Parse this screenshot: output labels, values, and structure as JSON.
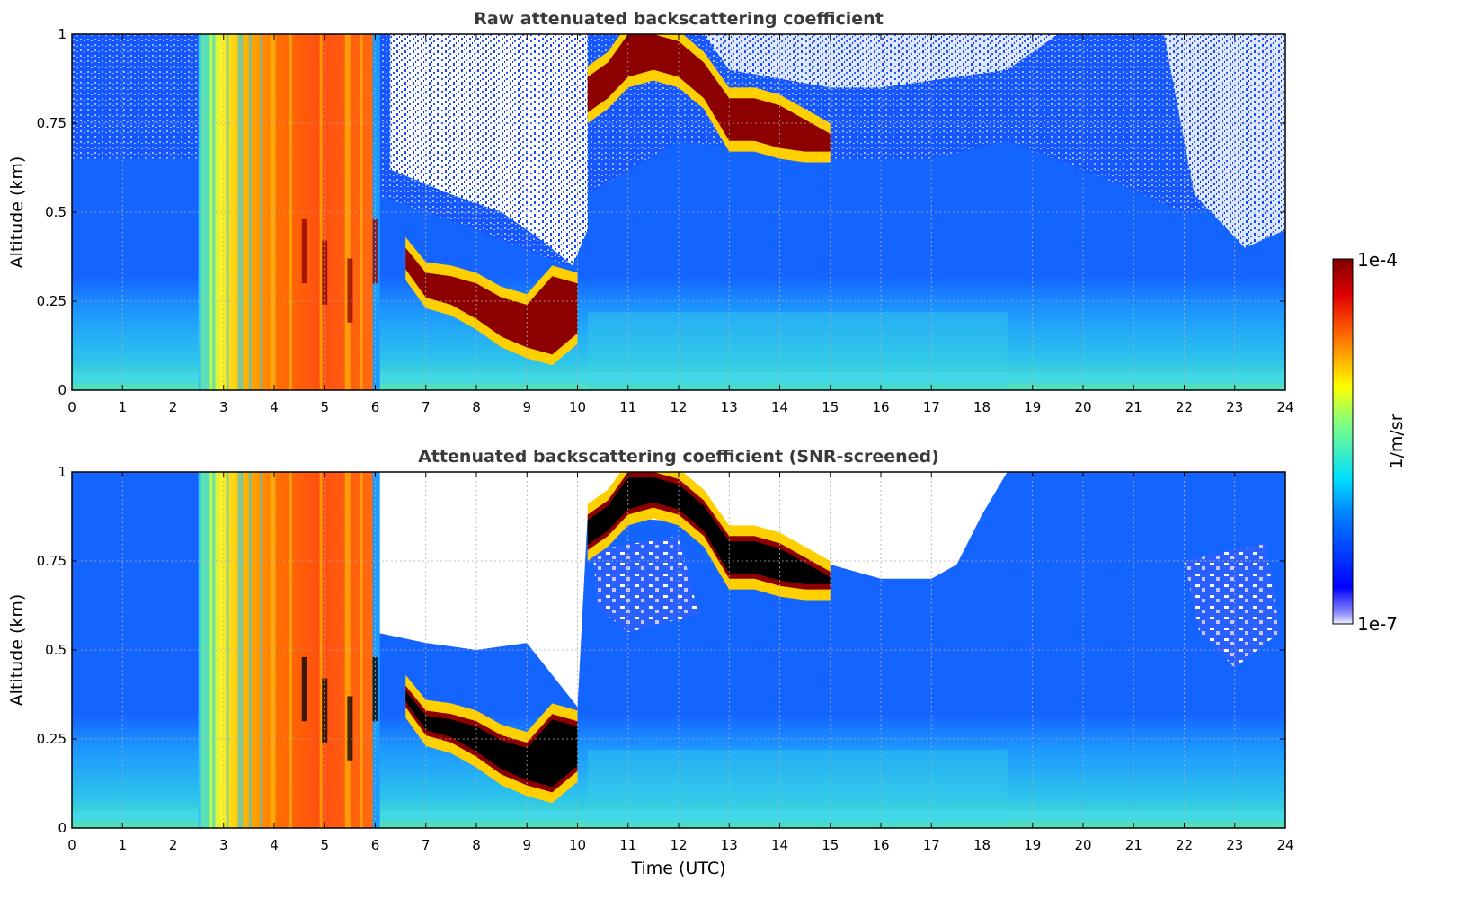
{
  "chart_data": [
    {
      "type": "heatmap",
      "title": "Raw attenuated backscattering coefficient",
      "xlabel": "",
      "ylabel": "Altitude (km)",
      "xlim": [
        0,
        24
      ],
      "ylim": [
        0,
        1
      ],
      "x_ticks": [
        "0",
        "1",
        "2",
        "3",
        "4",
        "5",
        "6",
        "7",
        "8",
        "9",
        "10",
        "11",
        "12",
        "13",
        "14",
        "15",
        "16",
        "17",
        "18",
        "19",
        "20",
        "21",
        "22",
        "23",
        "24"
      ],
      "y_ticks": [
        "0",
        "0.25",
        "0.5",
        "0.75",
        "1"
      ],
      "grid": true,
      "layer_top_km": [
        [
          4.6,
          0.48
        ],
        [
          5.0,
          0.42
        ],
        [
          5.5,
          0.37
        ],
        [
          6.0,
          0.48
        ],
        [
          6.2,
          0.55
        ],
        [
          6.6,
          0.4
        ],
        [
          7.0,
          0.33
        ],
        [
          7.5,
          0.32
        ],
        [
          8.0,
          0.3
        ],
        [
          8.5,
          0.26
        ],
        [
          9.0,
          0.24
        ],
        [
          9.5,
          0.32
        ],
        [
          10.0,
          0.3
        ],
        [
          10.2,
          0.88
        ],
        [
          10.6,
          0.92
        ],
        [
          11.0,
          1.0
        ],
        [
          11.5,
          1.0
        ],
        [
          12.0,
          0.98
        ],
        [
          12.5,
          0.92
        ],
        [
          13.0,
          0.82
        ],
        [
          13.5,
          0.82
        ],
        [
          14.0,
          0.8
        ],
        [
          14.5,
          0.76
        ],
        [
          15.0,
          0.72
        ]
      ],
      "layer_bottom_km": [
        [
          6.6,
          0.34
        ],
        [
          7.0,
          0.26
        ],
        [
          7.5,
          0.24
        ],
        [
          8.0,
          0.2
        ],
        [
          8.5,
          0.15
        ],
        [
          9.0,
          0.12
        ],
        [
          9.5,
          0.1
        ],
        [
          10.0,
          0.16
        ],
        [
          10.2,
          0.78
        ],
        [
          10.6,
          0.82
        ],
        [
          11.0,
          0.88
        ],
        [
          11.5,
          0.9
        ],
        [
          12.0,
          0.88
        ],
        [
          12.5,
          0.82
        ],
        [
          13.0,
          0.7
        ],
        [
          13.5,
          0.7
        ],
        [
          14.0,
          0.68
        ],
        [
          14.5,
          0.67
        ],
        [
          15.0,
          0.67
        ]
      ],
      "precipitation_intervals_utc": [
        [
          2.5,
          5.95
        ]
      ],
      "colors": {
        "sky_noise": "#ffffff",
        "clear_air": "#1464ff",
        "boundary_layer": "#38d4e6",
        "rain": "#ff7a10",
        "cloud": "#8c0000"
      }
    },
    {
      "type": "heatmap",
      "title": "Attenuated backscattering coefficient (SNR-screened)",
      "xlabel": "Time (UTC)",
      "ylabel": "Altitude (km)",
      "xlim": [
        0,
        24
      ],
      "ylim": [
        0,
        1
      ],
      "x_ticks": [
        "0",
        "1",
        "2",
        "3",
        "4",
        "5",
        "6",
        "7",
        "8",
        "9",
        "10",
        "11",
        "12",
        "13",
        "14",
        "15",
        "16",
        "17",
        "18",
        "19",
        "20",
        "21",
        "22",
        "23",
        "24"
      ],
      "y_ticks": [
        "0",
        "0.25",
        "0.5",
        "0.75",
        "1"
      ],
      "grid": true,
      "screened_region_bottom_km": [
        [
          6.0,
          0.55
        ],
        [
          7.0,
          0.52
        ],
        [
          8.0,
          0.5
        ],
        [
          9.0,
          0.52
        ],
        [
          10.0,
          0.34
        ],
        [
          10.2,
          0.88
        ],
        [
          13.0,
          0.85
        ],
        [
          15.0,
          0.74
        ],
        [
          16.0,
          0.7
        ],
        [
          17.0,
          0.7
        ],
        [
          17.5,
          0.74
        ],
        [
          18.0,
          0.88
        ],
        [
          18.5,
          1.0
        ]
      ],
      "saturated_color": "#000000",
      "colors": {
        "screened": "#ffffff",
        "clear_air": "#1464ff",
        "boundary_layer": "#38d4e6",
        "rain": "#ff7a10",
        "cloud": "#8c0000"
      }
    }
  ],
  "colorbar": {
    "label": "1/m/sr",
    "max_label": "1e-4",
    "min_label": "1e-7",
    "scale": "log",
    "colormap": "jet"
  }
}
